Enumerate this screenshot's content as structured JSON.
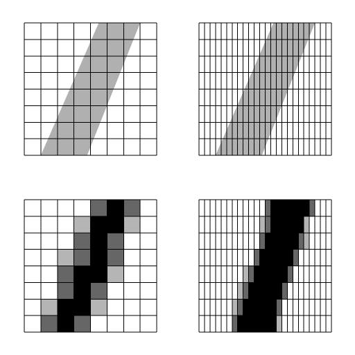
{
  "colors": {
    "background": "#ffffff",
    "grid_line": "#000000",
    "stroke_fill": "#b0b0b0",
    "level_0": "#ffffff",
    "level_1": "#b5b5b5",
    "level_2": "#666666",
    "level_3": "#000000"
  },
  "panels": [
    {
      "id": "top-left",
      "kind": "continuous-stroke",
      "columns": 8,
      "rows": 8,
      "stroke_cells": [
        [
          1,
          8
        ],
        [
          4.5,
          0
        ],
        [
          7,
          0
        ],
        [
          3.8,
          8
        ]
      ]
    },
    {
      "id": "top-right",
      "kind": "continuous-stroke",
      "columns": 24,
      "rows": 8,
      "stroke_cells": [
        [
          3,
          8
        ],
        [
          13.5,
          0
        ],
        [
          21,
          0
        ],
        [
          11.4,
          8
        ]
      ]
    },
    {
      "id": "bottom-left",
      "kind": "rasterized",
      "columns": 8,
      "rows": 8,
      "levels": [
        [
          0,
          0,
          0,
          0,
          2,
          3,
          2,
          0
        ],
        [
          0,
          0,
          0,
          1,
          3,
          3,
          1,
          0
        ],
        [
          0,
          0,
          0,
          2,
          3,
          2,
          0,
          0
        ],
        [
          0,
          0,
          1,
          2,
          3,
          2,
          0,
          0
        ],
        [
          0,
          0,
          2,
          3,
          3,
          1,
          0,
          0
        ],
        [
          0,
          0,
          2,
          3,
          2,
          0,
          0,
          0
        ],
        [
          0,
          1,
          3,
          3,
          1,
          0,
          0,
          0
        ],
        [
          0,
          2,
          3,
          2,
          0,
          0,
          0,
          0
        ]
      ]
    },
    {
      "id": "bottom-right",
      "kind": "rasterized",
      "columns": 24,
      "rows": 8,
      "levels": [
        [
          0,
          0,
          0,
          0,
          0,
          0,
          0,
          0,
          0,
          0,
          0,
          0,
          2,
          3,
          3,
          3,
          3,
          3,
          3,
          3,
          2,
          0,
          0,
          0
        ],
        [
          0,
          0,
          0,
          0,
          0,
          0,
          0,
          0,
          0,
          0,
          0,
          1,
          2,
          3,
          3,
          3,
          3,
          3,
          3,
          1,
          0,
          0,
          0,
          0
        ],
        [
          0,
          0,
          0,
          0,
          0,
          0,
          0,
          0,
          0,
          0,
          0,
          2,
          3,
          3,
          3,
          3,
          3,
          3,
          2,
          1,
          0,
          0,
          0,
          0
        ],
        [
          0,
          0,
          0,
          0,
          0,
          0,
          0,
          0,
          0,
          0,
          2,
          3,
          3,
          3,
          3,
          3,
          3,
          2,
          0,
          0,
          0,
          0,
          0,
          0
        ],
        [
          0,
          0,
          0,
          0,
          0,
          0,
          0,
          0,
          1,
          2,
          3,
          3,
          3,
          3,
          3,
          3,
          2,
          0,
          0,
          0,
          0,
          0,
          0,
          0
        ],
        [
          0,
          0,
          0,
          0,
          0,
          0,
          0,
          1,
          2,
          3,
          3,
          3,
          3,
          3,
          3,
          2,
          0,
          0,
          0,
          0,
          0,
          0,
          0,
          0
        ],
        [
          0,
          0,
          0,
          0,
          0,
          0,
          1,
          2,
          3,
          3,
          3,
          3,
          3,
          3,
          2,
          0,
          0,
          0,
          0,
          0,
          0,
          0,
          0,
          0
        ],
        [
          0,
          0,
          0,
          0,
          0,
          0,
          2,
          3,
          3,
          3,
          3,
          3,
          3,
          3,
          1,
          0,
          0,
          0,
          0,
          0,
          0,
          0,
          0,
          0
        ]
      ]
    }
  ]
}
